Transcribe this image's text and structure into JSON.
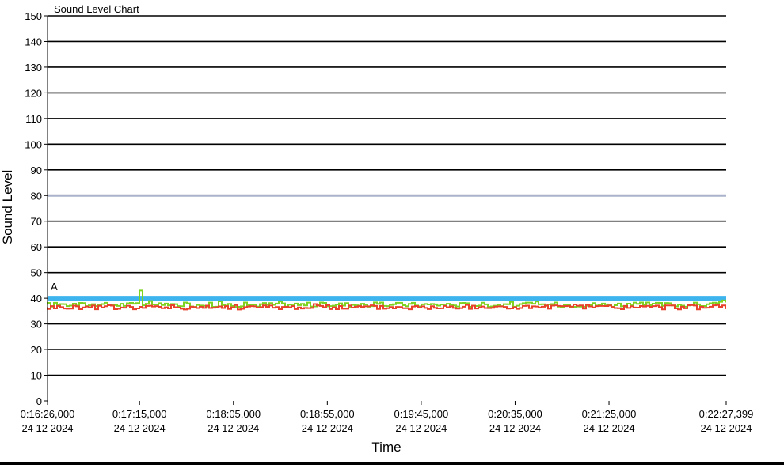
{
  "chart_data": {
    "type": "line",
    "title": "Sound Level Chart",
    "xlabel": "Time",
    "ylabel": "Sound Level",
    "ylim": [
      0,
      150
    ],
    "yticks": [
      0,
      10,
      20,
      30,
      40,
      50,
      60,
      70,
      80,
      90,
      100,
      110,
      120,
      130,
      140,
      150
    ],
    "grid": true,
    "x_ticks": [
      {
        "time": "0:16:26,000",
        "date": "24 12 2024"
      },
      {
        "time": "0:17:15,000",
        "date": "24 12 2024"
      },
      {
        "time": "0:18:05,000",
        "date": "24 12 2024"
      },
      {
        "time": "0:18:55,000",
        "date": "24 12 2024"
      },
      {
        "time": "0:19:45,000",
        "date": "24 12 2024"
      },
      {
        "time": "0:20:35,000",
        "date": "24 12 2024"
      },
      {
        "time": "0:21:25,000",
        "date": "24 12 2024"
      },
      {
        "time": "0:22:27,399",
        "date": "24 12 2024"
      }
    ],
    "reference_lines": [
      {
        "value": 80,
        "color": "#a9b4cc"
      },
      {
        "value": 40,
        "color": "#3eb4ef",
        "label": "A"
      }
    ],
    "series": [
      {
        "color": "#7ed321",
        "baseline": 37.5,
        "peak_time": "0:17:15",
        "peak_value": 43
      },
      {
        "color": "#e8412c",
        "baseline": 36.5
      }
    ],
    "colors": {
      "grid": "#000000",
      "reference_80": "#a9b4cc",
      "reference_40": "#3eb4ef",
      "series_green": "#7ed321",
      "series_red": "#e8412c"
    }
  }
}
